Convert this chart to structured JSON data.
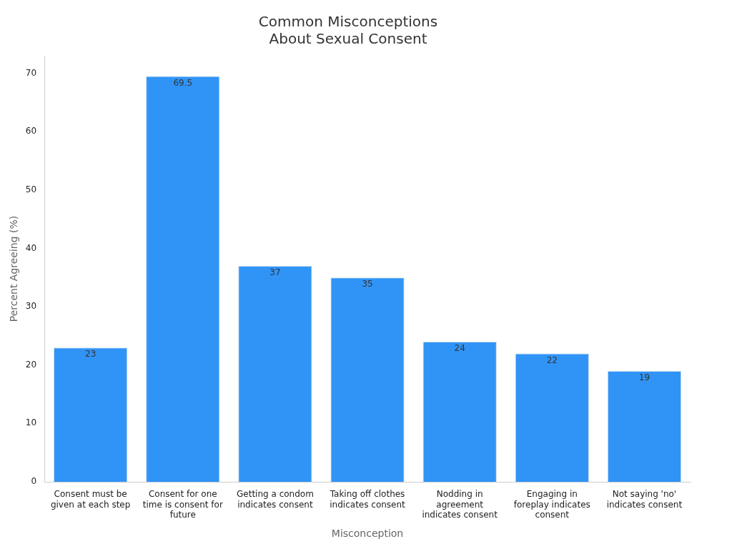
{
  "chart_data": {
    "type": "bar",
    "title": "Common Misconceptions\nAbout Sexual Consent",
    "xlabel": "Misconception",
    "ylabel": "Percent Agreeing (%)",
    "categories": [
      "Consent must be given at each step",
      "Consent for one time is consent for future",
      "Getting a condom indicates consent",
      "Taking off clothes indicates consent",
      "Nodding in agreement indicates consent",
      "Engaging in foreplay indicates consent",
      "Not saying 'no' indicates consent"
    ],
    "values": [
      23,
      69.5,
      37,
      35,
      24,
      22,
      19
    ],
    "color": "#3094f6",
    "ylim": [
      0,
      73
    ],
    "yticks": [
      0,
      10,
      20,
      30,
      40,
      50,
      60,
      70
    ],
    "grid": false,
    "legend": false,
    "data_labels": true
  }
}
